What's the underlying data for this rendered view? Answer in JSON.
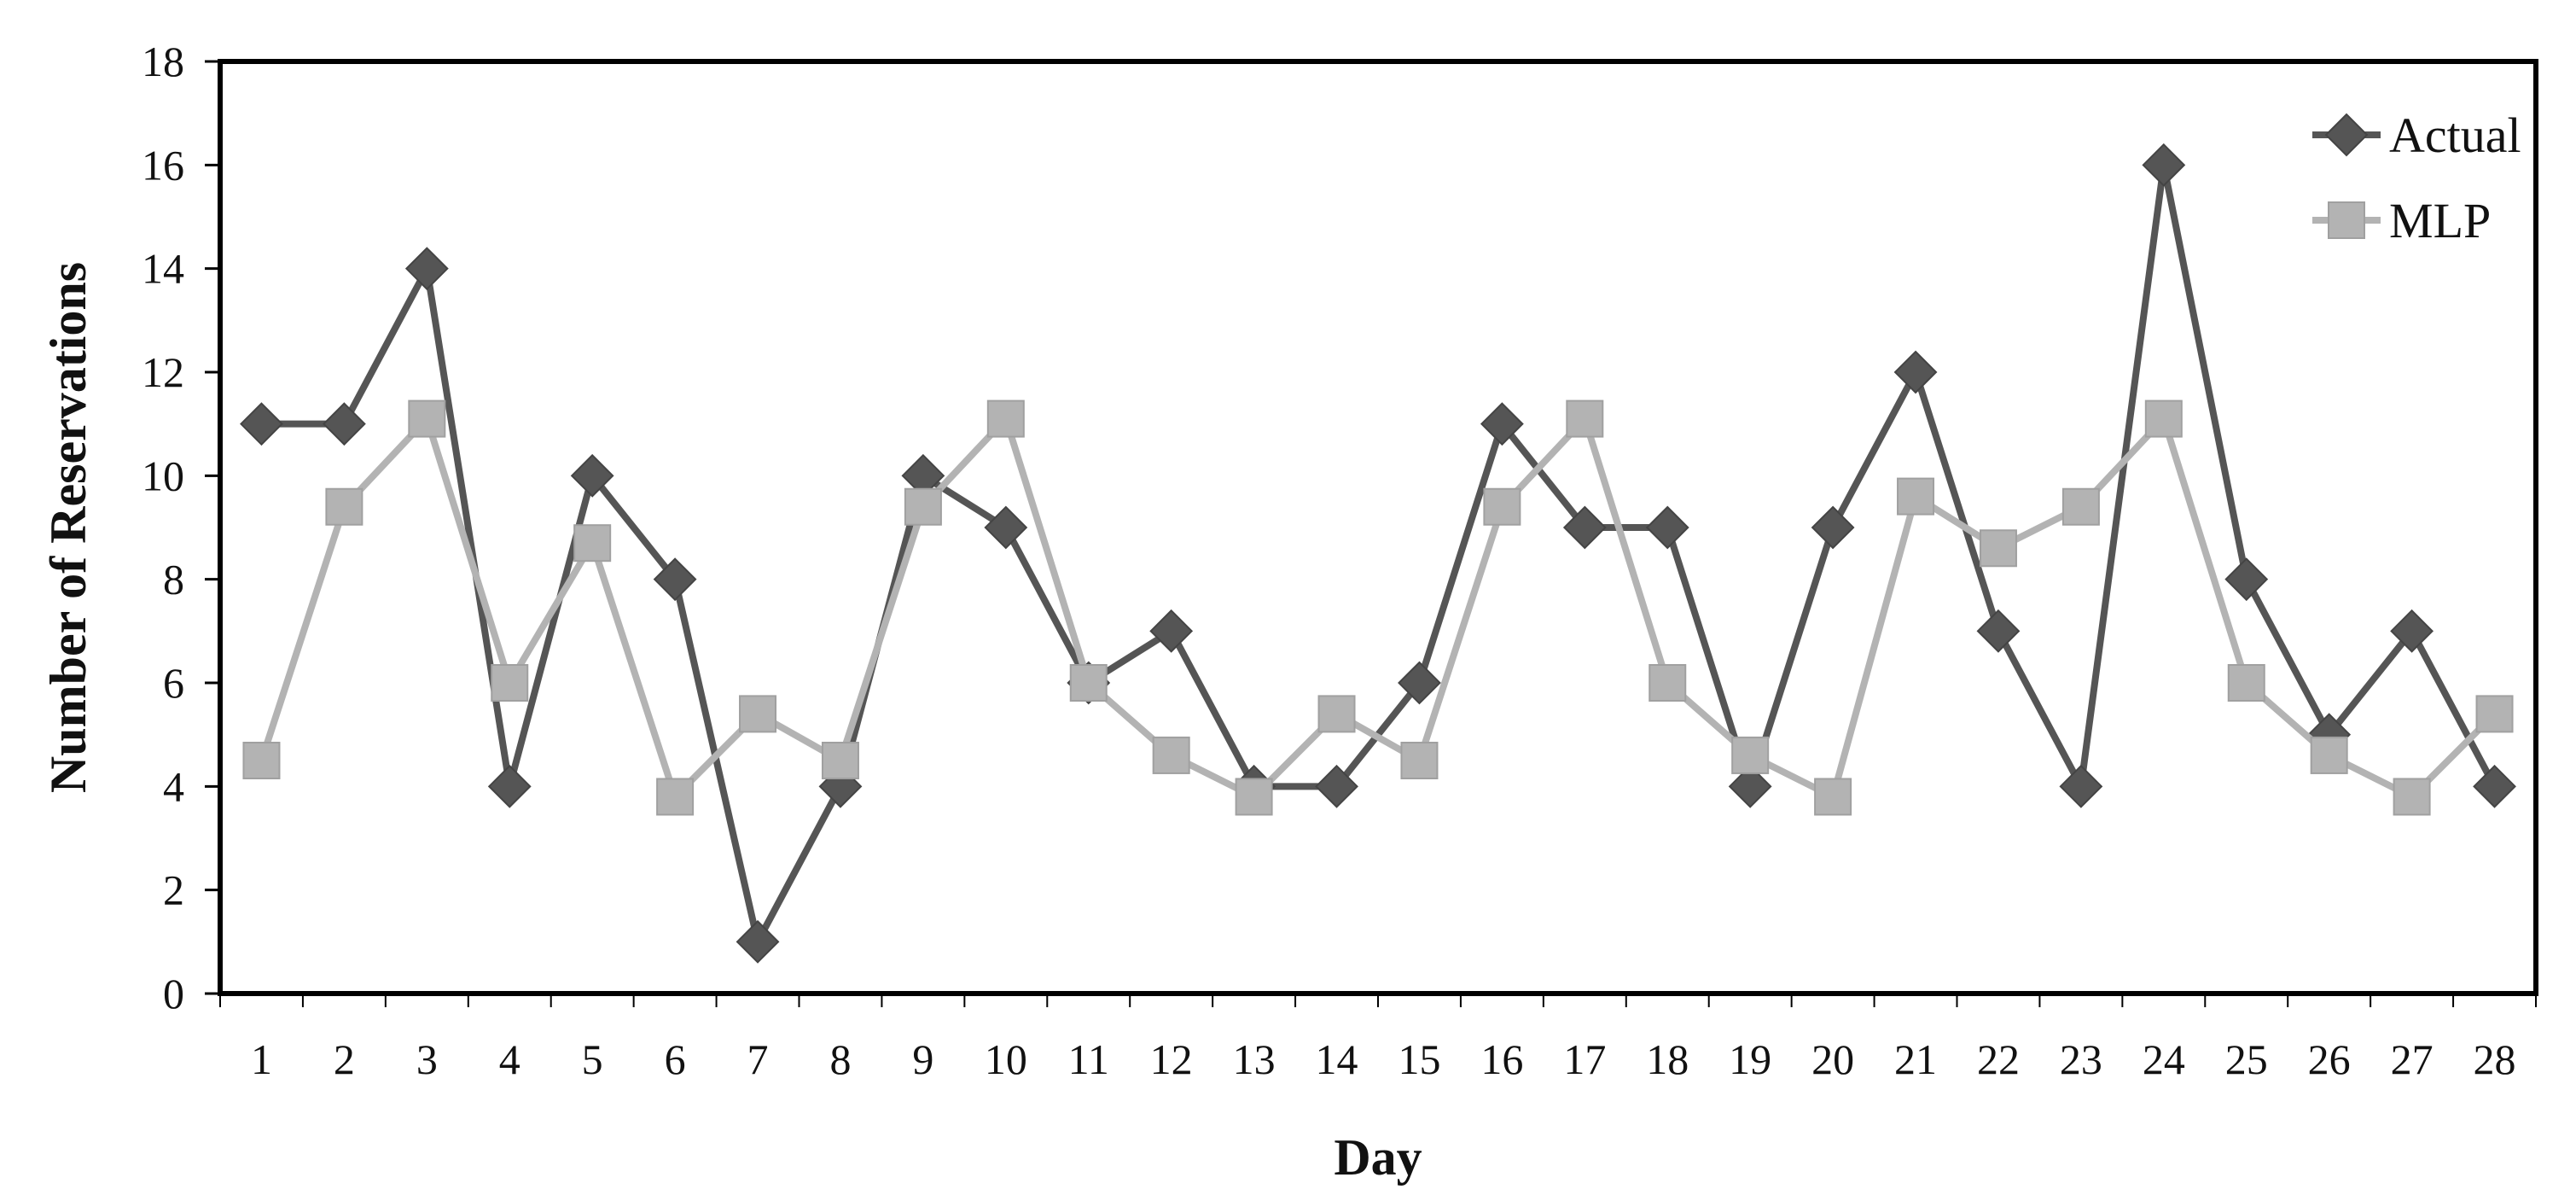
{
  "chart_data": {
    "type": "line",
    "title": "",
    "xlabel": "Day",
    "ylabel": "Number of Reservations",
    "categories": [
      "1",
      "2",
      "3",
      "4",
      "5",
      "6",
      "7",
      "8",
      "9",
      "10",
      "11",
      "12",
      "13",
      "14",
      "15",
      "16",
      "17",
      "18",
      "19",
      "20",
      "21",
      "22",
      "23",
      "24",
      "25",
      "26",
      "27",
      "28"
    ],
    "ylim": [
      0,
      18
    ],
    "yticks": [
      "0",
      "2",
      "4",
      "6",
      "8",
      "10",
      "12",
      "14",
      "16",
      "18"
    ],
    "grid": false,
    "legend_position": "top-right",
    "series": [
      {
        "name": "Actual",
        "marker": "diamond",
        "color": "#555555",
        "values": [
          11,
          11,
          14,
          4,
          10,
          8,
          1,
          4,
          10,
          9,
          6,
          7,
          4,
          4,
          6,
          11,
          9,
          9,
          4,
          9,
          12,
          7,
          4,
          16,
          8,
          5,
          7,
          4
        ]
      },
      {
        "name": "MLP",
        "marker": "square",
        "color": "#b3b3b3",
        "values": [
          4.5,
          9.4,
          11.1,
          6,
          8.7,
          3.8,
          5.4,
          4.5,
          9.4,
          11.1,
          6,
          4.6,
          3.8,
          5.4,
          4.5,
          9.4,
          11.1,
          6,
          4.6,
          3.8,
          9.6,
          8.6,
          9.4,
          11.1,
          6,
          4.6,
          3.8,
          5.4
        ]
      }
    ]
  }
}
